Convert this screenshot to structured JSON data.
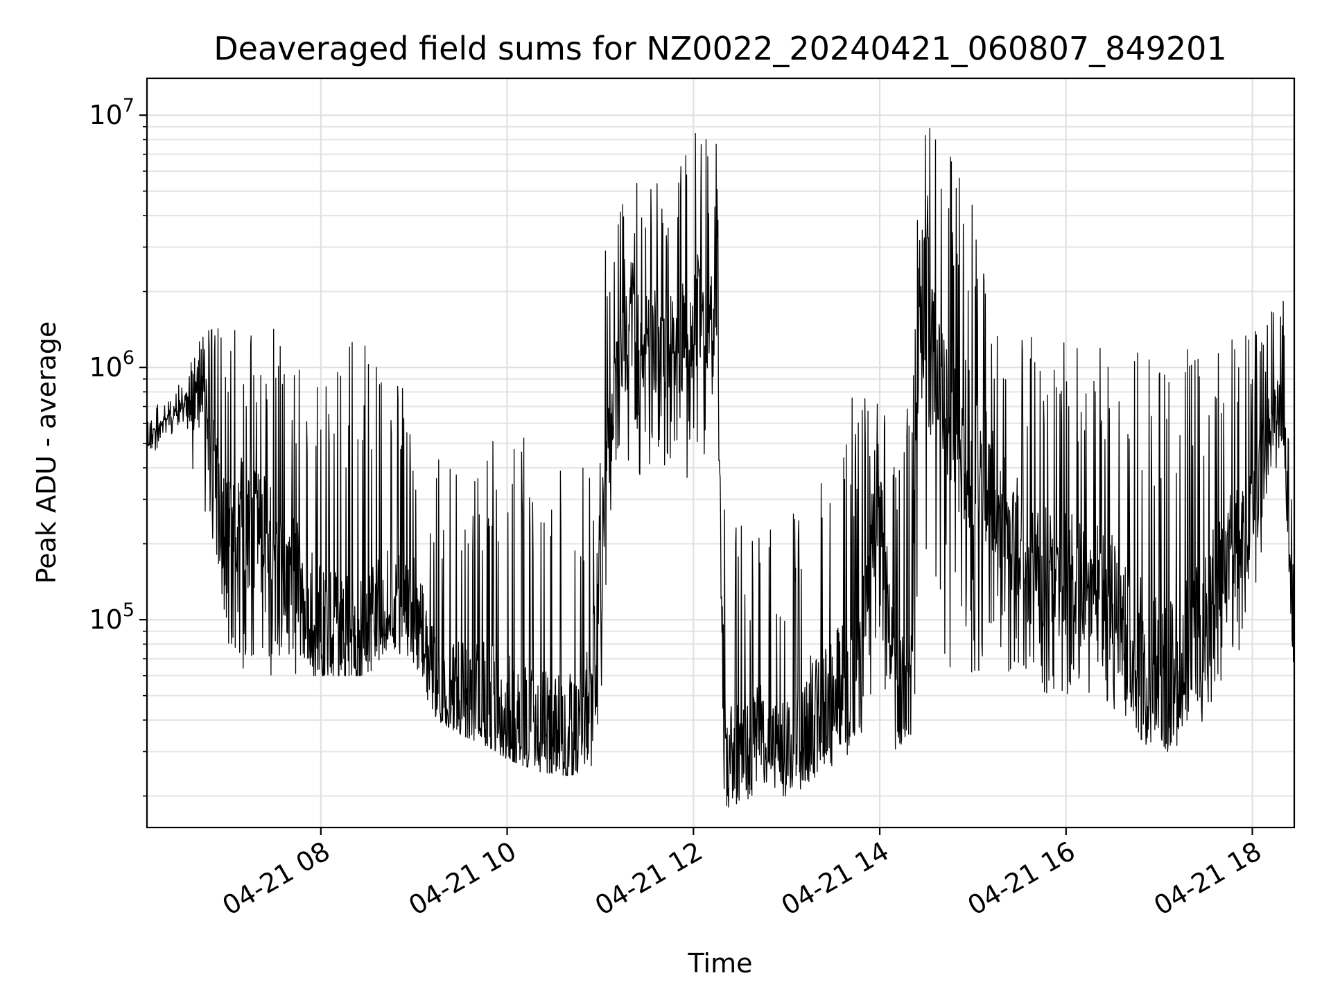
{
  "chart_data": {
    "type": "line",
    "title": "Deaveraged field sums for NZ0022_20240421_060807_849201",
    "xlabel": "Time",
    "ylabel": "Peak ADU - average",
    "yscale": "log",
    "ylim": [
      15000,
      14000000
    ],
    "xlim": [
      "2024-04-21 06:08",
      "2024-04-21 18:27"
    ],
    "grid": true,
    "line_color": "#000000",
    "x_ticks": [
      {
        "value": "2024-04-21 08:00",
        "label": "04-21 08"
      },
      {
        "value": "2024-04-21 10:00",
        "label": "04-21 10"
      },
      {
        "value": "2024-04-21 12:00",
        "label": "04-21 12"
      },
      {
        "value": "2024-04-21 14:00",
        "label": "04-21 14"
      },
      {
        "value": "2024-04-21 16:00",
        "label": "04-21 16"
      },
      {
        "value": "2024-04-21 18:00",
        "label": "04-21 18"
      }
    ],
    "y_ticks": [
      {
        "value": 100000,
        "base": "10",
        "exp": "5"
      },
      {
        "value": 1000000,
        "base": "10",
        "exp": "6"
      },
      {
        "value": 10000000,
        "base": "10",
        "exp": "7"
      }
    ],
    "series": [
      {
        "x": [
          "2024-04-21 06:08",
          "2024-04-21 06:30",
          "2024-04-21 06:45",
          "2024-04-21 07:00",
          "2024-04-21 07:10",
          "2024-04-21 07:30",
          "2024-04-21 08:00",
          "2024-04-21 08:30",
          "2024-04-21 08:45",
          "2024-04-21 09:00",
          "2024-04-21 09:15",
          "2024-04-21 09:30",
          "2024-04-21 09:45",
          "2024-04-21 10:00",
          "2024-04-21 10:20",
          "2024-04-21 10:40",
          "2024-04-21 10:55",
          "2024-04-21 11:00",
          "2024-04-21 11:10",
          "2024-04-21 11:20",
          "2024-04-21 11:30",
          "2024-04-21 11:45",
          "2024-04-21 12:00",
          "2024-04-21 12:15",
          "2024-04-21 12:20",
          "2024-04-21 12:30",
          "2024-04-21 12:45",
          "2024-04-21 13:00",
          "2024-04-21 13:15",
          "2024-04-21 13:30",
          "2024-04-21 13:45",
          "2024-04-21 14:00",
          "2024-04-21 14:10",
          "2024-04-21 14:20",
          "2024-04-21 14:25",
          "2024-04-21 14:30",
          "2024-04-21 14:45",
          "2024-04-21 15:00",
          "2024-04-21 15:15",
          "2024-04-21 15:30",
          "2024-04-21 15:45",
          "2024-04-21 16:00",
          "2024-04-21 16:30",
          "2024-04-21 16:45",
          "2024-04-21 17:00",
          "2024-04-21 17:15",
          "2024-04-21 17:30",
          "2024-04-21 17:45",
          "2024-04-21 18:00",
          "2024-04-21 18:10",
          "2024-04-21 18:20",
          "2024-04-21 18:27"
        ],
        "y": [
          500000,
          700000,
          700000,
          200000,
          250000,
          200000,
          90000,
          90000,
          120000,
          110000,
          55000,
          50000,
          50000,
          40000,
          35000,
          35000,
          45000,
          200000,
          1000000,
          1500000,
          1300000,
          1200000,
          1500000,
          1800000,
          30000,
          30000,
          35000,
          30000,
          40000,
          50000,
          60000,
          350000,
          50000,
          60000,
          1200000,
          1500000,
          700000,
          400000,
          300000,
          200000,
          150000,
          150000,
          120000,
          80000,
          60000,
          65000,
          110000,
          200000,
          250000,
          600000,
          700000,
          60000
        ],
        "lower": [
          420000,
          600000,
          250000,
          80000,
          60000,
          60000,
          60000,
          60000,
          80000,
          60000,
          40000,
          35000,
          32000,
          28000,
          25000,
          24000,
          26000,
          40000,
          400000,
          300000,
          350000,
          400000,
          350000,
          600000,
          18000,
          17000,
          20000,
          20000,
          22000,
          25000,
          30000,
          60000,
          30000,
          35000,
          60000,
          55000,
          60000,
          60000,
          70000,
          55000,
          50000,
          50000,
          45000,
          35000,
          28000,
          30000,
          40000,
          60000,
          80000,
          300000,
          500000,
          50000
        ],
        "upper": [
          650000,
          900000,
          1400000,
          1500000,
          1400000,
          1450000,
          1400000,
          1300000,
          1000000,
          700000,
          450000,
          450000,
          450000,
          650000,
          550000,
          450000,
          500000,
          3300000,
          4000000,
          5800000,
          5000000,
          6000000,
          9000000,
          8000000,
          280000,
          240000,
          250000,
          210000,
          450000,
          600000,
          800000,
          750000,
          550000,
          850000,
          5000000,
          10000000,
          7000000,
          4500000,
          1400000,
          1350000,
          1300000,
          1250000,
          1300000,
          1300000,
          1250000,
          1300000,
          1200000,
          1300000,
          1400000,
          1500000,
          2600000,
          150000
        ]
      }
    ]
  }
}
